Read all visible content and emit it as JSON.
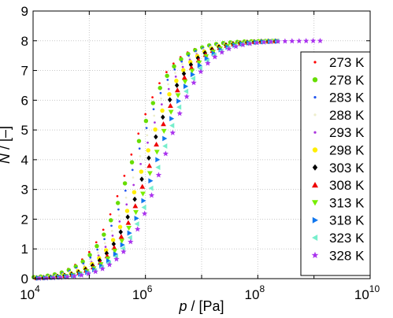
{
  "chart_data": {
    "type": "scatter",
    "xlabel": {
      "var": "p",
      "unit": "/ [Pa]"
    },
    "ylabel": {
      "var": "N",
      "unit": "/ [–]"
    },
    "x_scale": "log",
    "xlim": [
      10000,
      10000000000
    ],
    "ylim": [
      0,
      9
    ],
    "grid": true,
    "legend_position": "right",
    "x_ticks": [
      {
        "base": "10",
        "exp": "4",
        "value": 10000
      },
      {
        "base": "10",
        "exp": "6",
        "value": 1000000
      },
      {
        "base": "10",
        "exp": "8",
        "value": 100000000
      },
      {
        "base": "10",
        "exp": "10",
        "value": 10000000000
      }
    ],
    "y_ticks": [
      "0",
      "1",
      "2",
      "3",
      "4",
      "5",
      "6",
      "7",
      "8",
      "9"
    ],
    "series": [
      {
        "name": "273 K",
        "color": "#ff0000",
        "marker": "dot"
      },
      {
        "name": "278 K",
        "color": "#66dd00",
        "marker": "circle"
      },
      {
        "name": "283 K",
        "color": "#2255ee",
        "marker": "dot"
      },
      {
        "name": "288 K",
        "color": "#eeeecc",
        "marker": "dot"
      },
      {
        "name": "293 K",
        "color": "#aa33dd",
        "marker": "dot"
      },
      {
        "name": "298 K",
        "color": "#ffee00",
        "marker": "circle"
      },
      {
        "name": "303 K",
        "color": "#000000",
        "marker": "diamond"
      },
      {
        "name": "308 K",
        "color": "#ee0000",
        "marker": "triangle-up"
      },
      {
        "name": "313 K",
        "color": "#77ee00",
        "marker": "triangle-down"
      },
      {
        "name": "318 K",
        "color": "#1177ee",
        "marker": "triangle-right"
      },
      {
        "name": "323 K",
        "color": "#77eecc",
        "marker": "triangle-left"
      },
      {
        "name": "328 K",
        "color": "#aa33ee",
        "marker": "star"
      }
    ]
  }
}
